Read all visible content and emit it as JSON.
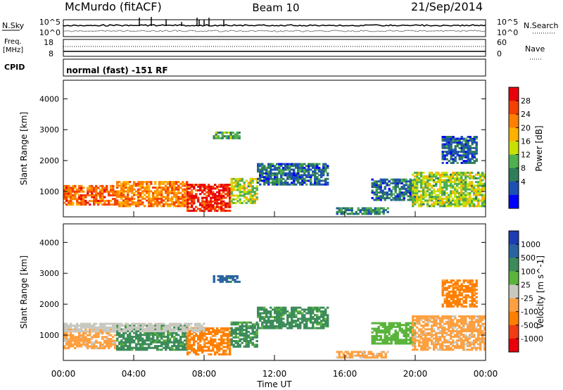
{
  "header": {
    "station": "McMurdo (fitACF)",
    "beam": "Beam 10",
    "date": "21/Sep/2014"
  },
  "noise_panel": {
    "left_label": "N.Sky",
    "right_label": "N.Search",
    "tick_top": "10^5",
    "tick_bottom": "10^0",
    "right_tick_top": "10^5",
    "right_tick_bottom": "10^0"
  },
  "freq_panel": {
    "left_label_1": "Freq.",
    "left_label_2": "[MHz]",
    "right_label": "Nave",
    "left_ticks": [
      "18",
      "8"
    ],
    "right_ticks": [
      "60",
      "0"
    ]
  },
  "cpid_panel": {
    "label": "CPID",
    "text": "normal (fast) -151 RF"
  },
  "x_axis": {
    "title": "Time UT",
    "ticks": [
      "00:00",
      "04:00",
      "08:00",
      "12:00",
      "16:00",
      "20:00",
      "00:00"
    ]
  },
  "chart_data": [
    {
      "type": "heatmap",
      "quantity": "Power",
      "ylabel": "Slant Range [km]",
      "xlabel": "Time UT",
      "xlim": [
        0,
        24
      ],
      "ylim": [
        180,
        4600
      ],
      "yticks": [
        1000,
        2000,
        3000,
        4000
      ],
      "colorbar": {
        "label": "Power [dB]",
        "ticks": [
          "28",
          "24",
          "20",
          "16",
          "12",
          "8",
          "4"
        ],
        "colors": [
          "#e8000b",
          "#f44000",
          "#ff7f00",
          "#ffb000",
          "#c8e000",
          "#4fb04f",
          "#2e7d5a",
          "#1e50b4",
          "#0000ff"
        ]
      },
      "regions": [
        {
          "t0": 0.0,
          "t1": 3.0,
          "r0": 550,
          "r1": 1200,
          "level": 24
        },
        {
          "t0": 3.0,
          "t1": 7.0,
          "r0": 500,
          "r1": 1300,
          "level": 22
        },
        {
          "t0": 7.0,
          "t1": 9.5,
          "r0": 350,
          "r1": 1200,
          "level": 28
        },
        {
          "t0": 9.5,
          "t1": 11.0,
          "r0": 600,
          "r1": 1400,
          "level": 14
        },
        {
          "t0": 11.0,
          "t1": 15.0,
          "r0": 1200,
          "r1": 1900,
          "level": 6
        },
        {
          "t0": 15.5,
          "t1": 18.5,
          "r0": 250,
          "r1": 450,
          "level": 8
        },
        {
          "t0": 17.5,
          "t1": 20.0,
          "r0": 700,
          "r1": 1400,
          "level": 6
        },
        {
          "t0": 19.8,
          "t1": 24.0,
          "r0": 500,
          "r1": 1600,
          "level": 14
        },
        {
          "t0": 8.5,
          "t1": 10.0,
          "r0": 2700,
          "r1": 2900,
          "level": 10
        },
        {
          "t0": 21.5,
          "t1": 23.5,
          "r0": 1900,
          "r1": 2800,
          "level": 5
        }
      ]
    },
    {
      "type": "heatmap",
      "quantity": "Velocity",
      "ylabel": "Slant Range [km]",
      "xlabel": "Time UT",
      "xlim": [
        0,
        24
      ],
      "ylim": [
        180,
        4600
      ],
      "yticks": [
        1000,
        2000,
        3000,
        4000
      ],
      "colorbar": {
        "label": "Velocity [m s^-1]",
        "ticks": [
          "1000",
          "500",
          "100",
          "25",
          "-25",
          "-100",
          "-500",
          "-1000"
        ],
        "colors": [
          "#1e3cb4",
          "#2a64a0",
          "#3c8c5a",
          "#5ab43c",
          "#c8c8c0",
          "#ffa040",
          "#ff8000",
          "#f03c14",
          "#e8000b"
        ]
      },
      "regions": [
        {
          "t0": 0.0,
          "t1": 3.0,
          "r0": 550,
          "r1": 1200,
          "velocity": -100
        },
        {
          "t0": 3.0,
          "t1": 7.0,
          "r0": 500,
          "r1": 1300,
          "velocity": 100
        },
        {
          "t0": 7.0,
          "t1": 9.5,
          "r0": 350,
          "r1": 1200,
          "velocity": -500
        },
        {
          "t0": 9.5,
          "t1": 11.0,
          "r0": 600,
          "r1": 1400,
          "velocity": 100
        },
        {
          "t0": 11.0,
          "t1": 15.0,
          "r0": 1200,
          "r1": 1900,
          "velocity": 100
        },
        {
          "t0": 15.5,
          "t1": 18.5,
          "r0": 250,
          "r1": 450,
          "velocity": -100
        },
        {
          "t0": 17.5,
          "t1": 20.0,
          "r0": 700,
          "r1": 1400,
          "velocity": 25
        },
        {
          "t0": 19.8,
          "t1": 24.0,
          "r0": 500,
          "r1": 1600,
          "velocity": -100
        },
        {
          "t0": 0.0,
          "t1": 8.0,
          "r0": 1100,
          "r1": 1350,
          "velocity": -25
        },
        {
          "t0": 8.5,
          "t1": 10.0,
          "r0": 2700,
          "r1": 2900,
          "velocity": 500
        },
        {
          "t0": 21.5,
          "t1": 23.5,
          "r0": 1900,
          "r1": 2800,
          "velocity": -500
        }
      ]
    }
  ]
}
